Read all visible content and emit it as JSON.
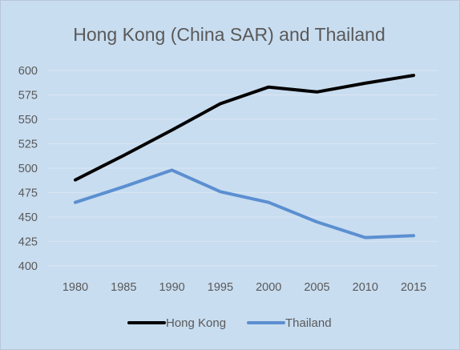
{
  "chart_data": {
    "type": "line",
    "title": "Hong Kong (China SAR) and Thailand",
    "xlabel": "",
    "ylabel": "",
    "categories": [
      "1980",
      "1985",
      "1990",
      "1995",
      "2000",
      "2005",
      "2010",
      "2015"
    ],
    "yticks": [
      "400",
      "425",
      "450",
      "475",
      "500",
      "525",
      "550",
      "575",
      "600"
    ],
    "ylim": [
      400,
      600
    ],
    "grid": true,
    "legend_position": "bottom",
    "series": [
      {
        "name": "Hong Kong",
        "color": "#000000",
        "values": [
          488,
          513,
          539,
          566,
          583,
          578,
          587,
          595
        ]
      },
      {
        "name": "Thailand",
        "color": "#5b8fd1",
        "values": [
          465,
          481,
          498,
          476,
          465,
          445,
          429,
          431
        ]
      }
    ]
  },
  "colors": {
    "background": "#c9ddf0",
    "gridline": "#d9e6f3",
    "text": "#595959"
  }
}
